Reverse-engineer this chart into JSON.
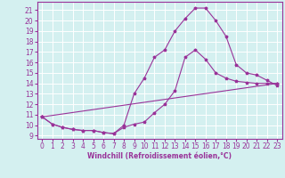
{
  "xlabel": "Windchill (Refroidissement éolien,°C)",
  "xlim": [
    -0.5,
    23.5
  ],
  "ylim": [
    8.7,
    21.8
  ],
  "yticks": [
    9,
    10,
    11,
    12,
    13,
    14,
    15,
    16,
    17,
    18,
    19,
    20,
    21
  ],
  "xticks": [
    0,
    1,
    2,
    3,
    4,
    5,
    6,
    7,
    8,
    9,
    10,
    11,
    12,
    13,
    14,
    15,
    16,
    17,
    18,
    19,
    20,
    21,
    22,
    23
  ],
  "line_color": "#993399",
  "bg_color": "#d4f0f0",
  "grid_color": "#ffffff",
  "lines": [
    {
      "x": [
        0,
        1,
        2,
        3,
        4,
        5,
        6,
        7,
        8,
        9,
        10,
        11,
        12,
        13,
        14,
        15,
        16,
        17,
        18,
        19,
        20,
        21,
        22,
        23
      ],
      "y": [
        10.8,
        10.1,
        9.8,
        9.6,
        9.5,
        9.5,
        9.3,
        9.2,
        9.8,
        10.1,
        10.3,
        11.2,
        12.0,
        13.3,
        16.5,
        17.2,
        16.3,
        15.0,
        14.5,
        14.2,
        14.1,
        14.0,
        14.0,
        14.0
      ]
    },
    {
      "x": [
        0,
        1,
        2,
        3,
        4,
        5,
        6,
        7,
        8,
        9,
        10,
        11,
        12,
        13,
        14,
        15,
        16,
        17,
        18,
        19,
        20,
        21,
        22,
        23
      ],
      "y": [
        10.8,
        10.1,
        9.8,
        9.6,
        9.5,
        9.5,
        9.3,
        9.2,
        10.0,
        13.0,
        14.5,
        16.5,
        17.2,
        19.0,
        20.2,
        21.2,
        21.2,
        20.0,
        18.5,
        15.8,
        15.0,
        14.8,
        14.3,
        13.8
      ]
    },
    {
      "x": [
        0,
        23
      ],
      "y": [
        10.8,
        14.0
      ]
    }
  ],
  "tick_fontsize": 5.5,
  "xlabel_fontsize": 5.5,
  "marker": "*",
  "markersize": 2.5,
  "linewidth": 0.8
}
